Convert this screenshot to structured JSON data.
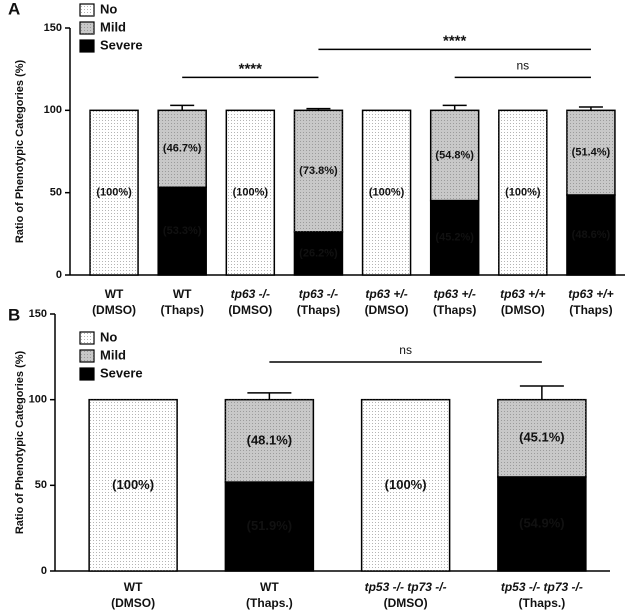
{
  "chart_data": [
    {
      "type": "bar",
      "stacked": true,
      "panel": "A",
      "ylabel": "Ratio of Phenotypic Categories (%)",
      "ylim": [
        0,
        150
      ],
      "yticks": [
        0,
        50,
        100,
        150
      ],
      "categories": [
        [
          "WT",
          "(DMSO)"
        ],
        [
          "WT",
          "(Thaps)"
        ],
        [
          "tp63 -/-",
          "(DMSO)"
        ],
        [
          "tp63 -/-",
          "(Thaps)"
        ],
        [
          "tp63 +/-",
          "(DMSO)"
        ],
        [
          "tp63 +/-",
          "(Thaps)"
        ],
        [
          "tp63 +/+",
          "(DMSO)"
        ],
        [
          "tp63 +/+",
          "(Thaps)"
        ]
      ],
      "series": [
        {
          "name": "Severe",
          "color": "#000000",
          "values": [
            0,
            53.3,
            0,
            26.2,
            0,
            45.2,
            0,
            48.6
          ],
          "value_labels": [
            null,
            "(53.3%)",
            null,
            "(26.2%)",
            null,
            "(45.2%)",
            null,
            "(48.6%)"
          ],
          "errors": [
            null,
            3,
            null,
            1,
            null,
            3,
            null,
            2
          ]
        },
        {
          "name": "Mild",
          "color": "#c8c8c8",
          "values": [
            0,
            46.7,
            0,
            73.8,
            0,
            54.8,
            0,
            51.4
          ],
          "value_labels": [
            null,
            "(46.7%)",
            null,
            "(73.8%)",
            null,
            "(54.8%)",
            null,
            "(51.4%)"
          ],
          "errors": [
            null,
            3,
            null,
            1,
            null,
            3,
            null,
            2
          ]
        },
        {
          "name": "No",
          "color": "#ffffff",
          "values": [
            100,
            0,
            100,
            0,
            100,
            0,
            100,
            0
          ],
          "value_labels": [
            "(100%)",
            null,
            "(100%)",
            null,
            "(100%)",
            null,
            "(100%)",
            null
          ]
        }
      ],
      "brackets": [
        {
          "from": 1,
          "to": 3,
          "y": 120,
          "label": "****"
        },
        {
          "from": 3,
          "to": 7,
          "y": 137,
          "label": "****"
        },
        {
          "from": 5,
          "to": 7,
          "y": 120,
          "label": "ns"
        }
      ]
    },
    {
      "type": "bar",
      "stacked": true,
      "panel": "B",
      "ylabel": "Ratio of Phenotypic Categories (%)",
      "ylim": [
        0,
        150
      ],
      "yticks": [
        0,
        50,
        100,
        150
      ],
      "categories": [
        [
          "WT",
          "(DMSO)"
        ],
        [
          "WT",
          "(Thaps.)"
        ],
        [
          "tp53 -/- tp73 -/-",
          "(DMSO)"
        ],
        [
          "tp53 -/- tp73 -/-",
          "(Thaps.)"
        ]
      ],
      "series": [
        {
          "name": "Severe",
          "color": "#000000",
          "values": [
            0,
            51.9,
            0,
            54.9
          ],
          "value_labels": [
            null,
            "(51.9%)",
            null,
            "(54.9%)"
          ],
          "errors": [
            null,
            4,
            null,
            8
          ]
        },
        {
          "name": "Mild",
          "color": "#c8c8c8",
          "values": [
            0,
            48.1,
            0,
            45.1
          ],
          "value_labels": [
            null,
            "(48.1%)",
            null,
            "(45.1%)"
          ],
          "errors": [
            null,
            4,
            null,
            8
          ]
        },
        {
          "name": "No",
          "color": "#ffffff",
          "values": [
            100,
            0,
            100,
            0
          ],
          "value_labels": [
            "(100%)",
            null,
            "(100%)",
            null
          ]
        }
      ],
      "brackets": [
        {
          "from": 1,
          "to": 3,
          "y": 122,
          "label": "ns"
        }
      ]
    }
  ]
}
